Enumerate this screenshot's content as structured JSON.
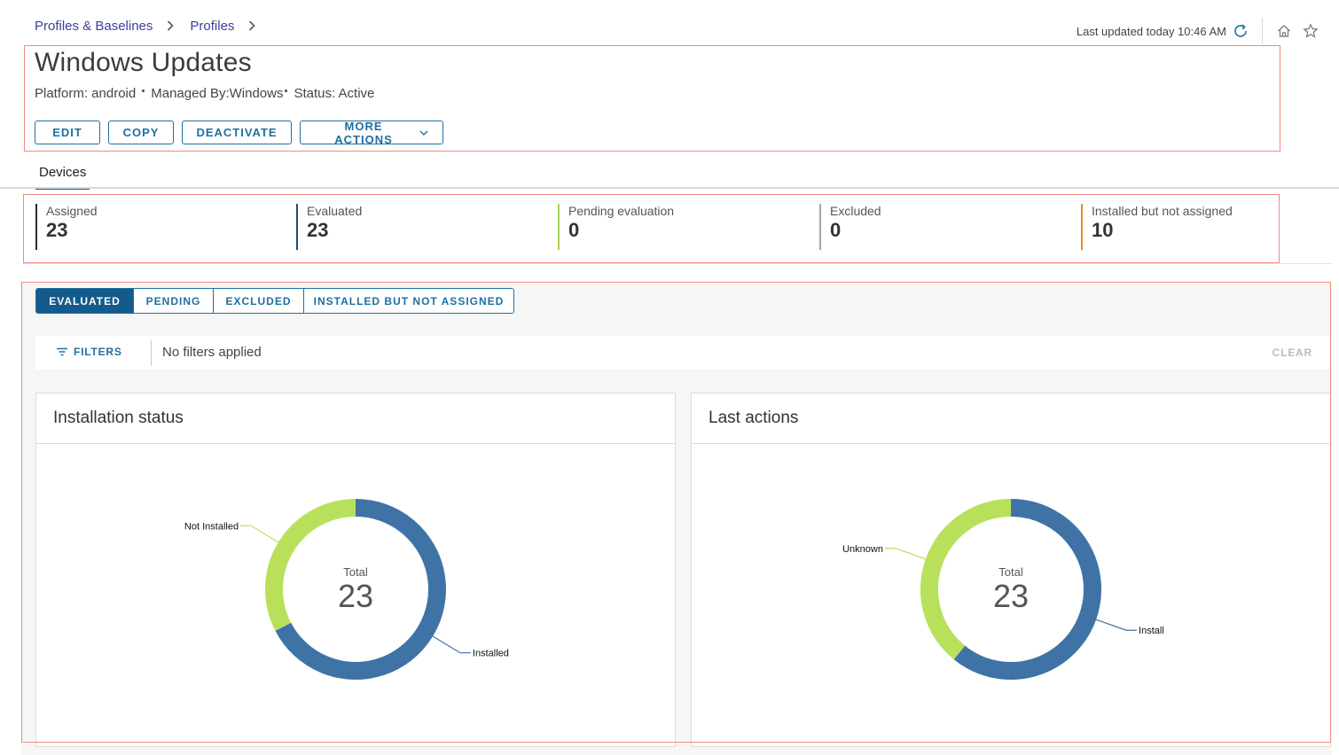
{
  "breadcrumb": {
    "items": [
      "Profiles & Baselines",
      "Profiles"
    ]
  },
  "header": {
    "last_updated": "Last updated today 10:46 AM"
  },
  "title": "Windows Updates",
  "meta": {
    "platform": "Platform: android",
    "managed_by": "Managed By:Windows",
    "status": "Status: Active"
  },
  "actions": {
    "edit": "EDIT",
    "copy": "COPY",
    "deactivate": "DEACTIVATE",
    "more": "MORE ACTIONS"
  },
  "tabs": {
    "devices": "Devices"
  },
  "stats": [
    {
      "label": "Assigned",
      "value": "23",
      "color": "#2a2a2a"
    },
    {
      "label": "Evaluated",
      "value": "23",
      "color": "#1a4d7a"
    },
    {
      "label": "Pending evaluation",
      "value": "0",
      "color": "#a8d14f"
    },
    {
      "label": "Excluded",
      "value": "0",
      "color": "#9aa7b3"
    },
    {
      "label": "Installed but not assigned",
      "value": "10",
      "color": "#e98a2e"
    }
  ],
  "segments": {
    "evaluated": "EVALUATED",
    "pending": "PENDING",
    "excluded": "EXCLUDED",
    "installed_not_assigned": "INSTALLED BUT NOT ASSIGNED"
  },
  "filters": {
    "button": "FILTERS",
    "status": "No filters applied",
    "clear": "CLEAR"
  },
  "colors": {
    "blue": "#3f73a6",
    "green": "#b9e05b"
  },
  "chart_data": [
    {
      "type": "pie",
      "title": "Installation status",
      "center_label": "Total",
      "total": 23,
      "slices": [
        {
          "name": "Installed",
          "value": 15.5,
          "color": "#3f73a6"
        },
        {
          "name": "Not Installed",
          "value": 7.5,
          "color": "#b9e05b"
        }
      ]
    },
    {
      "type": "pie",
      "title": "Last actions",
      "center_label": "Total",
      "total": 23,
      "slices": [
        {
          "name": "Install",
          "value": 14,
          "color": "#3f73a6"
        },
        {
          "name": "Unknown",
          "value": 9,
          "color": "#b9e05b"
        }
      ]
    }
  ]
}
